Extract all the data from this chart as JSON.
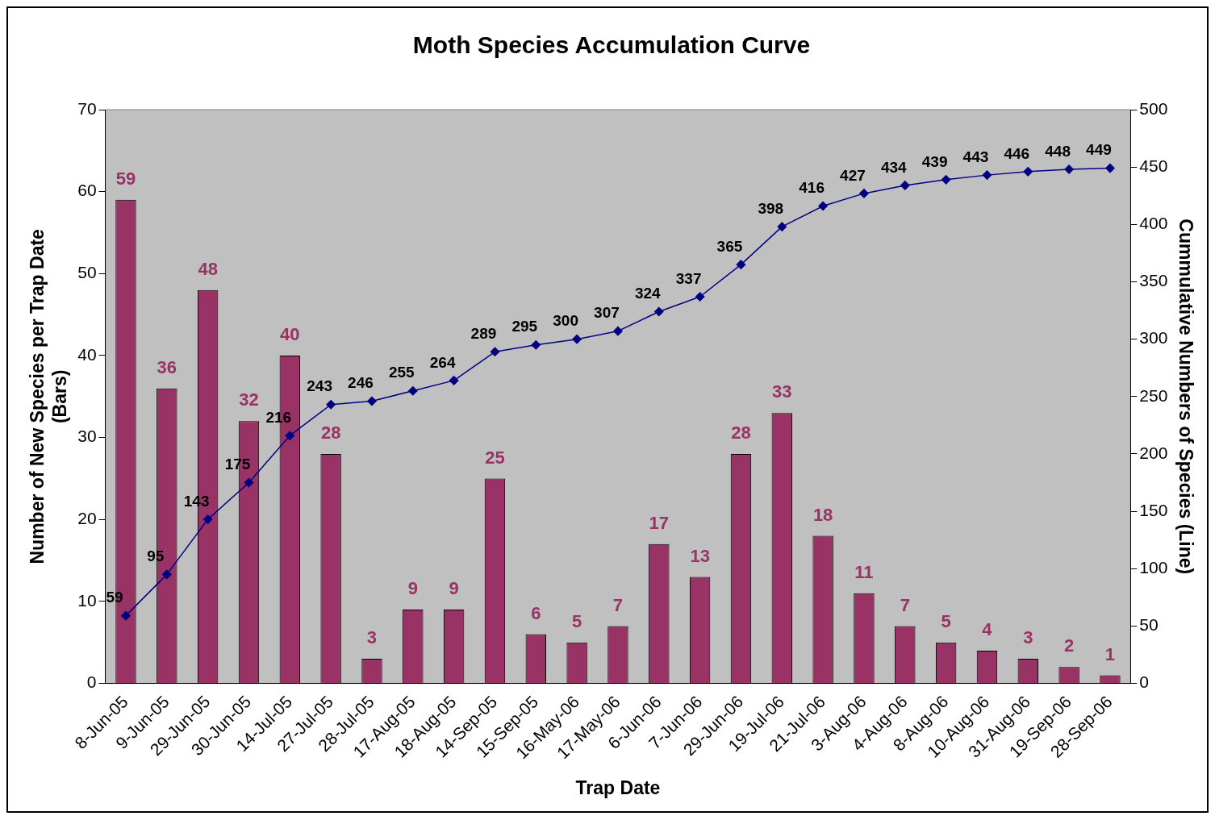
{
  "chart_data": {
    "type": "bar",
    "title": "Moth Species Accumulation Curve",
    "xlabel": "Trap Date",
    "ylabel": "Number of New Species per Trap Date\n(Bars)",
    "y2label": "Cummulative Numbers of Species (Line)",
    "categories": [
      "8-Jun-05",
      "9-Jun-05",
      "29-Jun-05",
      "30-Jun-05",
      "14-Jul-05",
      "27-Jul-05",
      "28-Jul-05",
      "17-Aug-05",
      "18-Aug-05",
      "14-Sep-05",
      "15-Sep-05",
      "16-May-06",
      "17-May-06",
      "6-Jun-06",
      "7-Jun-06",
      "29-Jun-06",
      "19-Jul-06",
      "21-Jul-06",
      "3-Aug-06",
      "4-Aug-06",
      "8-Aug-06",
      "10-Aug-06",
      "31-Aug-06",
      "19-Sep-06",
      "28-Sep-06"
    ],
    "series": [
      {
        "color": "#993366",
        "values": [
          59,
          36,
          48,
          32,
          40,
          28,
          3,
          9,
          9,
          25,
          6,
          5,
          7,
          17,
          13,
          28,
          33,
          18,
          11,
          7,
          5,
          4,
          3,
          2,
          1
        ]
      },
      {
        "type": "line",
        "axis": "y2",
        "color": "#000080",
        "marker": "diamond",
        "values": [
          59,
          95,
          143,
          175,
          216,
          243,
          246,
          255,
          264,
          289,
          295,
          300,
          307,
          324,
          337,
          365,
          398,
          416,
          427,
          434,
          439,
          443,
          446,
          448,
          449
        ]
      }
    ],
    "ylim": [
      0,
      70
    ],
    "yticks": [
      0,
      10,
      20,
      30,
      40,
      50,
      60,
      70
    ],
    "y2lim": [
      0,
      500
    ],
    "y2ticks": [
      0,
      50,
      100,
      150,
      200,
      250,
      300,
      350,
      400,
      450,
      500
    ],
    "data_labels": true,
    "grid": false,
    "legend": false
  }
}
